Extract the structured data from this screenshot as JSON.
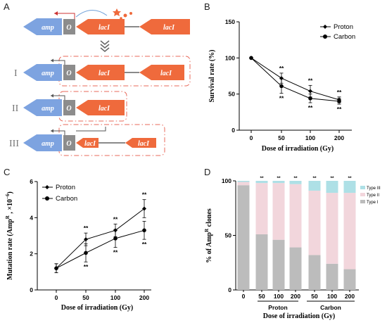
{
  "panel_a": {
    "letter": "A",
    "roman_labels": [
      "I",
      "II",
      "III"
    ],
    "gene_amp": "amp",
    "gene_o": "O",
    "gene_laci": "lacI",
    "colors": {
      "amp": "#7da3e0",
      "laci": "#ef6a3c",
      "operator": "#8c8c8c",
      "box": "#e8685a"
    }
  },
  "panel_b": {
    "letter": "B",
    "ylabel": "Survival rate (%)",
    "xlabel": "Dose of irradiation (Gy)",
    "yticks": [
      "0",
      "50",
      "100",
      "150"
    ],
    "xticks": [
      "0",
      "50",
      "100",
      "200"
    ],
    "legend": [
      "Proton",
      "Carbon"
    ],
    "sig": "**"
  },
  "panel_c": {
    "letter": "C",
    "ylabel_pre": "Mutation rate (Amp",
    "ylabel_sup_r": "R",
    "ylabel_mid": " , ×10",
    "ylabel_sup_exp": "−6",
    "ylabel_post": ")",
    "xlabel": "Dose of irradiation (Gy)",
    "yticks": [
      "0",
      "2",
      "4",
      "6"
    ],
    "xticks": [
      "0",
      "50",
      "100",
      "200"
    ],
    "legend": [
      "Proton",
      "Carbon"
    ],
    "sig": "**"
  },
  "panel_d": {
    "letter": "D",
    "ylabel_pre": "% of Amp",
    "ylabel_sup": "R",
    "ylabel_post": " clones",
    "xlabel": "Dose of irradiation (Gy)",
    "yticks": [
      "0",
      "50",
      "100"
    ],
    "xticks": [
      "0",
      "50",
      "100",
      "200",
      "50",
      "100",
      "200"
    ],
    "group_labels": [
      "Proton",
      "Carbon"
    ],
    "legend": [
      "Type III",
      "Type II",
      "Type I"
    ],
    "sig": "**"
  },
  "chart_data": [
    {
      "type": "line",
      "panel": "B",
      "x": [
        0,
        50,
        100,
        200
      ],
      "series": [
        {
          "name": "Proton",
          "values": [
            100,
            72,
            54,
            42
          ],
          "errors": [
            0,
            7,
            8,
            4
          ]
        },
        {
          "name": "Carbon",
          "values": [
            100,
            61,
            44,
            40
          ],
          "errors": [
            0,
            10,
            6,
            4
          ]
        }
      ],
      "ylim": [
        0,
        150
      ],
      "grid": false,
      "legend_position": "top-right"
    },
    {
      "type": "line",
      "panel": "C",
      "x": [
        0,
        50,
        100,
        200
      ],
      "series": [
        {
          "name": "Proton",
          "values": [
            1.2,
            2.8,
            3.3,
            4.5
          ],
          "errors": [
            0.25,
            0.35,
            0.35,
            0.5
          ]
        },
        {
          "name": "Carbon",
          "values": [
            1.2,
            2.05,
            2.85,
            3.3
          ],
          "errors": [
            0.25,
            0.5,
            0.5,
            0.5
          ]
        }
      ],
      "ylim": [
        0,
        6
      ],
      "grid": false,
      "legend_position": "top-left"
    },
    {
      "type": "bar",
      "panel": "D",
      "categories": [
        "0",
        "50",
        "100",
        "200",
        "50",
        "100",
        "200"
      ],
      "series": [
        {
          "name": "Type I",
          "values": [
            96,
            51,
            46,
            39,
            32,
            24,
            19
          ]
        },
        {
          "name": "Type II",
          "values": [
            3,
            47,
            52,
            58,
            59,
            65,
            70
          ]
        },
        {
          "name": "Type III",
          "values": [
            1,
            2,
            2,
            3,
            9,
            11,
            11
          ]
        }
      ],
      "stacked": true,
      "ylim": [
        0,
        100
      ],
      "colors": {
        "Type I": "#bcbcbc",
        "Type II": "#f2d6dc",
        "Type III": "#aee0e6"
      },
      "legend_position": "top-right"
    }
  ]
}
